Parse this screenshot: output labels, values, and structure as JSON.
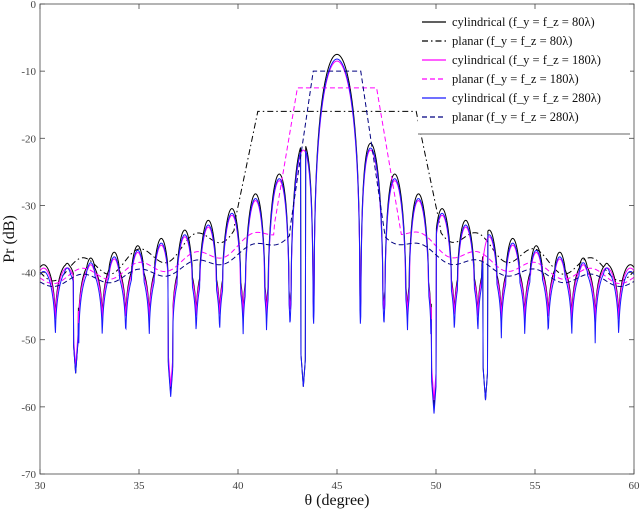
{
  "chart_data": {
    "type": "line",
    "xlabel": "θ (degree)",
    "ylabel": "Pr (dB)",
    "xlim": [
      30,
      60
    ],
    "ylim": [
      -70,
      0
    ],
    "xticks": [
      30,
      35,
      40,
      45,
      50,
      55,
      60
    ],
    "yticks": [
      0,
      -10,
      -20,
      -30,
      -40,
      -50,
      -60,
      -70
    ],
    "grid": false,
    "legend_position": "top-right",
    "series": [
      {
        "name": "cylindrical (f_y = f_z = 80λ)",
        "color": "#000000",
        "dash": "solid",
        "kind": "lobe",
        "peak": -7.5,
        "fringe": -43,
        "null_depth": 10,
        "deep_nulls": {
          "31.8": -55,
          "36.6": -58,
          "43.3": -57,
          "49.9": -60,
          "52.5": -59
        }
      },
      {
        "name": "planar (f_y = f_z = 80λ)",
        "color": "#000000",
        "dash": "dashdot",
        "kind": "flat",
        "center": 45,
        "halfwidth": 4.0,
        "top": -16,
        "outer": -41,
        "ripple": 1.5
      },
      {
        "name": "cylindrical (f_y = f_z = 180λ)",
        "color": "#ff00ff",
        "dash": "solid",
        "kind": "lobe",
        "peak": -8.5,
        "fringe": -43.5,
        "null_depth": 10,
        "deep_nulls": {
          "31.8": -54,
          "36.6": -57,
          "49.9": -59
        }
      },
      {
        "name": "planar (f_y = f_z = 180λ)",
        "color": "#ff00ff",
        "dash": "dashed",
        "kind": "flat",
        "center": 45,
        "halfwidth": 2.0,
        "top": -12.5,
        "outer": -41.5,
        "ripple": 1.0
      },
      {
        "name": "cylindrical (f_y = f_z = 280λ)",
        "color": "#1a1aff",
        "dash": "solid",
        "kind": "lobe",
        "peak": -8.2,
        "fringe": -44,
        "null_depth": 12,
        "deep_nulls": {
          "31.8": -55,
          "36.6": -58.5,
          "43.3": -57,
          "49.9": -61,
          "52.5": -59
        }
      },
      {
        "name": "planar (f_y = f_z = 280λ)",
        "color": "#000080",
        "dash": "dashed",
        "kind": "flat",
        "center": 45,
        "halfwidth": 1.2,
        "top": -10,
        "outer": -42,
        "ripple": 0.8
      }
    ],
    "legend": [
      {
        "label": "cylindrical (f_y = f_z = 80λ)",
        "color": "#000000",
        "dash": "solid"
      },
      {
        "label": "planar (f_y = f_z = 80λ)",
        "color": "#000000",
        "dash": "dashdot"
      },
      {
        "label": "cylindrical (f_y = f_z = 180λ)",
        "color": "#ff00ff",
        "dash": "solid"
      },
      {
        "label": "planar (f_y = f_z = 180λ)",
        "color": "#ff00ff",
        "dash": "dashed"
      },
      {
        "label": "cylindrical (f_y = f_z = 280λ)",
        "color": "#1a1aff",
        "dash": "solid"
      },
      {
        "label": "planar (f_y = f_z = 280λ)",
        "color": "#000080",
        "dash": "dashed"
      }
    ]
  }
}
